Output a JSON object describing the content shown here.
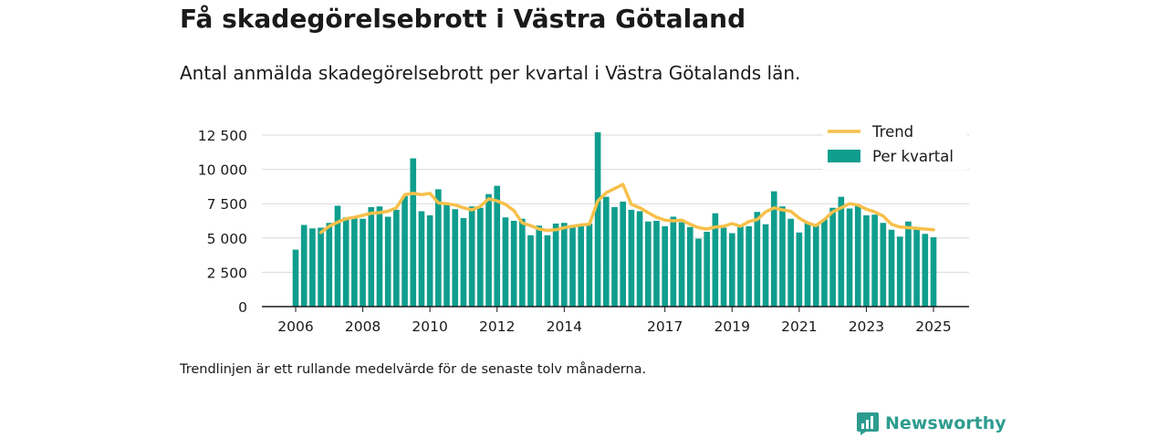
{
  "title": "Få skadegörelsebrott i Västra Götaland",
  "subtitle": "Antal anmälda skadegörelsebrott per kvartal i Västra Götalands län.",
  "footnote": "Trendlinjen är ett rullande medelvärde för de senaste tolv månaderna.",
  "brand": {
    "name": "Newsworthy",
    "icon": "newsworthy-logo-icon",
    "color": "#2d9c8f"
  },
  "chart_data": {
    "type": "bar",
    "title": "",
    "xlabel": "",
    "ylabel": "",
    "ylim": [
      0,
      12500
    ],
    "y_ticks": [
      0,
      2500,
      5000,
      7500,
      10000,
      12500
    ],
    "y_tick_labels": [
      "0",
      "2 500",
      "5 000",
      "7 500",
      "10 000",
      "12 500"
    ],
    "x_ticks": [
      2006,
      2008,
      2010,
      2012,
      2014,
      2017,
      2019,
      2021,
      2023,
      2025
    ],
    "x_tick_labels": [
      "2006",
      "2008",
      "2010",
      "2012",
      "2014",
      "2017",
      "2019",
      "2021",
      "2023",
      "2025"
    ],
    "grid": true,
    "legend_position": "top-right",
    "colors": {
      "bars": "#0f9e8e",
      "trend": "#f7c04a"
    },
    "series": [
      {
        "name": "Per kvartal",
        "type": "bar",
        "x": [
          2006.0,
          2006.25,
          2006.5,
          2006.75,
          2007.0,
          2007.25,
          2007.5,
          2007.75,
          2008.0,
          2008.25,
          2008.5,
          2008.75,
          2009.0,
          2009.25,
          2009.5,
          2009.75,
          2010.0,
          2010.25,
          2010.5,
          2010.75,
          2011.0,
          2011.25,
          2011.5,
          2011.75,
          2012.0,
          2012.25,
          2012.5,
          2012.75,
          2013.0,
          2013.25,
          2013.5,
          2013.75,
          2014.0,
          2014.25,
          2014.5,
          2014.75,
          2015.0,
          2015.25,
          2015.5,
          2015.75,
          2016.0,
          2016.25,
          2016.5,
          2016.75,
          2017.0,
          2017.25,
          2017.5,
          2017.75,
          2018.0,
          2018.25,
          2018.5,
          2018.75,
          2019.0,
          2019.25,
          2019.5,
          2019.75,
          2020.0,
          2020.25,
          2020.5,
          2020.75,
          2021.0,
          2021.25,
          2021.5,
          2021.75,
          2022.0,
          2022.25,
          2022.5,
          2022.75,
          2023.0,
          2023.25,
          2023.5,
          2023.75,
          2024.0,
          2024.25,
          2024.5,
          2024.75,
          2025.0
        ],
        "values": [
          4150,
          5950,
          5700,
          5750,
          6100,
          7350,
          6500,
          6500,
          6400,
          7250,
          7300,
          6550,
          7050,
          8050,
          10800,
          6950,
          6650,
          8550,
          7500,
          7100,
          6450,
          7300,
          7200,
          8200,
          8800,
          6500,
          6250,
          6400,
          5200,
          5900,
          5200,
          6050,
          6100,
          5950,
          5850,
          6050,
          12700,
          8000,
          7250,
          7650,
          7050,
          6950,
          6200,
          6250,
          5850,
          6550,
          6150,
          5800,
          4950,
          5450,
          6800,
          5750,
          5350,
          5900,
          5850,
          6900,
          6000,
          8400,
          7300,
          6400,
          5400,
          6150,
          5950,
          6350,
          7200,
          8000,
          7150,
          7400,
          6650,
          6700,
          6100,
          5600,
          5100,
          6200,
          5750,
          5300,
          5050
        ]
      },
      {
        "name": "Trend",
        "type": "line",
        "x": [
          2006.75,
          2007.0,
          2007.25,
          2007.5,
          2007.75,
          2008.0,
          2008.25,
          2008.5,
          2008.75,
          2009.0,
          2009.25,
          2009.5,
          2009.75,
          2010.0,
          2010.25,
          2010.5,
          2010.75,
          2011.0,
          2011.25,
          2011.5,
          2011.75,
          2012.0,
          2012.25,
          2012.5,
          2012.75,
          2013.0,
          2013.25,
          2013.5,
          2013.75,
          2014.0,
          2014.25,
          2014.5,
          2014.75,
          2015.0,
          2015.25,
          2015.5,
          2015.75,
          2016.0,
          2016.25,
          2016.5,
          2016.75,
          2017.0,
          2017.25,
          2017.5,
          2017.75,
          2018.0,
          2018.25,
          2018.5,
          2018.75,
          2019.0,
          2019.25,
          2019.5,
          2019.75,
          2020.0,
          2020.25,
          2020.5,
          2020.75,
          2021.0,
          2021.25,
          2021.5,
          2021.75,
          2022.0,
          2022.25,
          2022.5,
          2022.75,
          2023.0,
          2023.25,
          2023.5,
          2023.75,
          2024.0,
          2024.25,
          2024.5,
          2024.75,
          2025.0
        ],
        "values": [
          5400,
          5850,
          6150,
          6400,
          6500,
          6650,
          6800,
          6850,
          6950,
          7200,
          8150,
          8250,
          8150,
          8250,
          7550,
          7500,
          7400,
          7200,
          7050,
          7300,
          7850,
          7700,
          7450,
          7000,
          6100,
          5900,
          5650,
          5550,
          5600,
          5750,
          5850,
          5950,
          6000,
          7700,
          8300,
          8600,
          8900,
          7450,
          7200,
          6850,
          6500,
          6300,
          6250,
          6300,
          6000,
          5750,
          5650,
          5800,
          5850,
          6050,
          5850,
          6200,
          6350,
          6900,
          7200,
          7050,
          6950,
          6450,
          6100,
          5900,
          6350,
          6900,
          7200,
          7500,
          7400,
          7100,
          6900,
          6600,
          6000,
          5800,
          5750,
          5700,
          5650,
          5600
        ]
      }
    ]
  }
}
